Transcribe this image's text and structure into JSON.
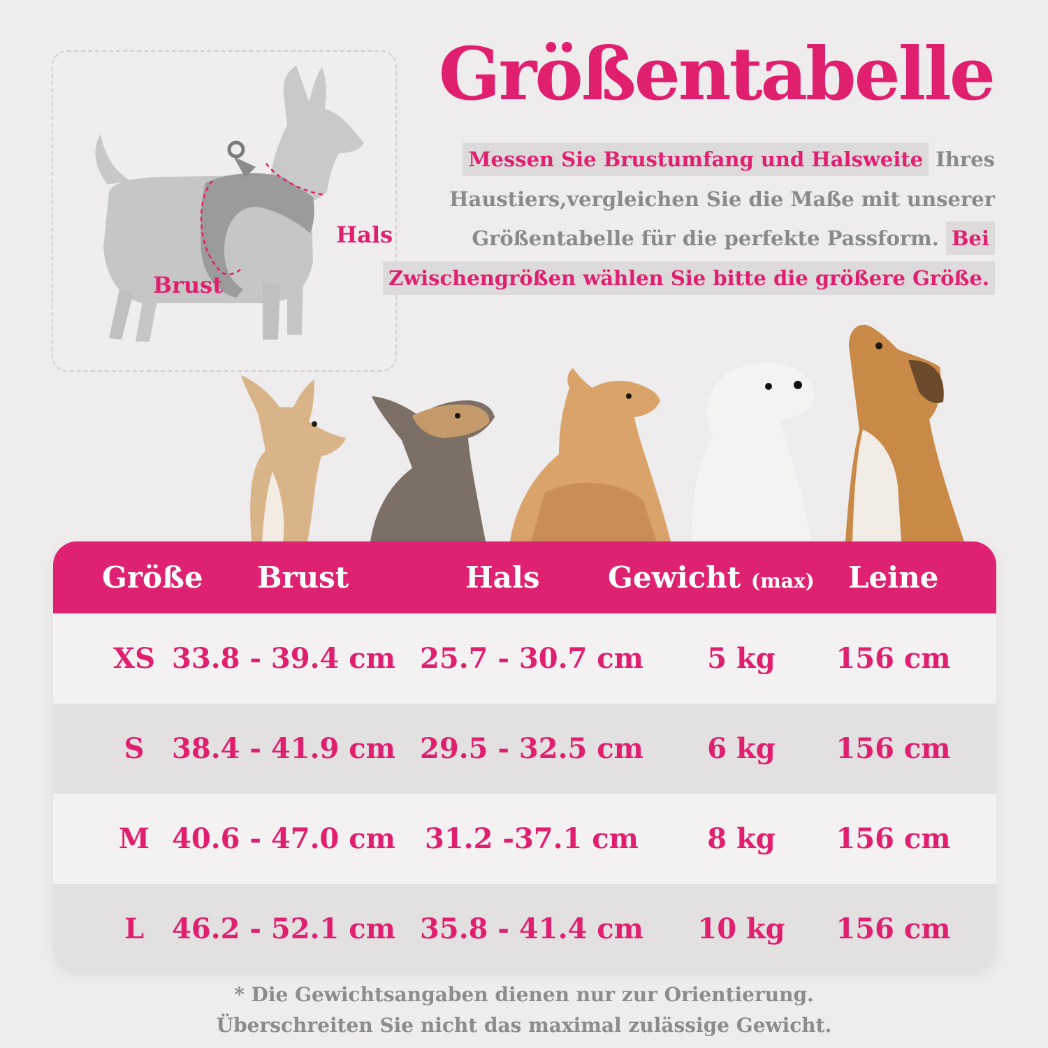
{
  "diagram": {
    "label_hals": "Hals",
    "label_brust": "Brust"
  },
  "title": "Größentabelle",
  "intro": {
    "hl1": "Messen Sie Brustumfang und Halsweite",
    "plain": " Ihres Haustiers,vergleichen Sie die Maße mit unserer Größentabelle für die perfekte Passform. ",
    "hl2": "Bei Zwischengrößen wählen Sie bitte die größere Größe."
  },
  "table": {
    "headers": {
      "size": "Größe",
      "chest": "Brust",
      "neck": "Hals",
      "weight": "Gewicht",
      "weight_unit": "(max)",
      "leash": "Leine"
    },
    "rows": [
      {
        "size": "XS",
        "chest": "33.8 - 39.4 cm",
        "neck": "25.7 - 30.7 cm",
        "weight": "5 kg",
        "leash": "156 cm"
      },
      {
        "size": "S",
        "chest": "38.4 - 41.9 cm",
        "neck": "29.5 - 32.5 cm",
        "weight": "6 kg",
        "leash": "156 cm"
      },
      {
        "size": "M",
        "chest": "40.6 - 47.0 cm",
        "neck": "31.2 -37.1 cm",
        "weight": "8 kg",
        "leash": "156 cm"
      },
      {
        "size": "L",
        "chest": "46.2 - 52.1 cm",
        "neck": "35.8 - 41.4 cm",
        "weight": "10 kg",
        "leash": "156 cm"
      }
    ]
  },
  "footnote": {
    "line1": "* Die Gewichtsangaben dienen nur zur Orientierung.",
    "line2": "Überschreiten Sie nicht das maximal zulässige Gewicht."
  },
  "colors": {
    "accent": "#e0206f",
    "header_bg": "#df2171",
    "text_gray": "#8a8a8a",
    "highlight_bg": "#dcdadb",
    "row_light": "#f3f1f1",
    "row_dark": "#e2e0e1"
  }
}
